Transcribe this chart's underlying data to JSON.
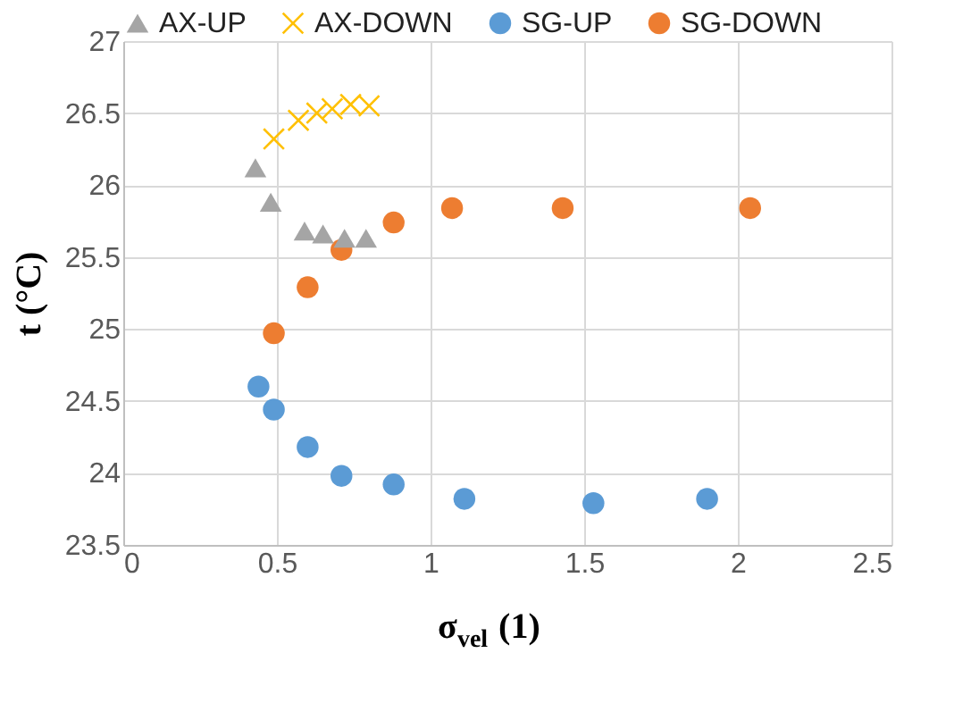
{
  "chart_data": {
    "type": "scatter",
    "xlabel": "σ$_{vel}$ (1)",
    "ylabel": "t (°C)",
    "xlim": [
      0,
      2.5
    ],
    "xticks": [
      0,
      0.5,
      1,
      1.5,
      2,
      2.5
    ],
    "ylim": [
      23.5,
      27
    ],
    "yticks": [
      23.5,
      24,
      24.5,
      25,
      25.5,
      26,
      26.5,
      27
    ],
    "grid": true,
    "legend": "top",
    "series": [
      {
        "name": "AX-UP",
        "color": "#a5a5a5",
        "marker": "triangle",
        "x": [
          0.43,
          0.48,
          0.59,
          0.65,
          0.72,
          0.79
        ],
        "values": [
          26.12,
          25.88,
          25.68,
          25.66,
          25.63,
          25.63
        ]
      },
      {
        "name": "AX-DOWN",
        "color": "#ffc000",
        "marker": "cross",
        "x": [
          0.49,
          0.57,
          0.63,
          0.68,
          0.74,
          0.8
        ],
        "values": [
          26.32,
          26.45,
          26.5,
          26.53,
          26.56,
          26.55
        ]
      },
      {
        "name": "SG-UP",
        "color": "#5b9bd5",
        "marker": "circle",
        "x": [
          0.44,
          0.49,
          0.6,
          0.71,
          0.88,
          1.11,
          1.53,
          1.9
        ],
        "values": [
          24.6,
          24.44,
          24.18,
          23.98,
          23.92,
          23.82,
          23.79,
          23.82
        ]
      },
      {
        "name": "SG-DOWN",
        "color": "#ed7d31",
        "marker": "circle",
        "x": [
          0.49,
          0.6,
          0.71,
          0.88,
          1.07,
          1.43,
          2.04
        ],
        "values": [
          24.97,
          25.29,
          25.55,
          25.74,
          25.84,
          25.84,
          25.84
        ]
      }
    ]
  }
}
